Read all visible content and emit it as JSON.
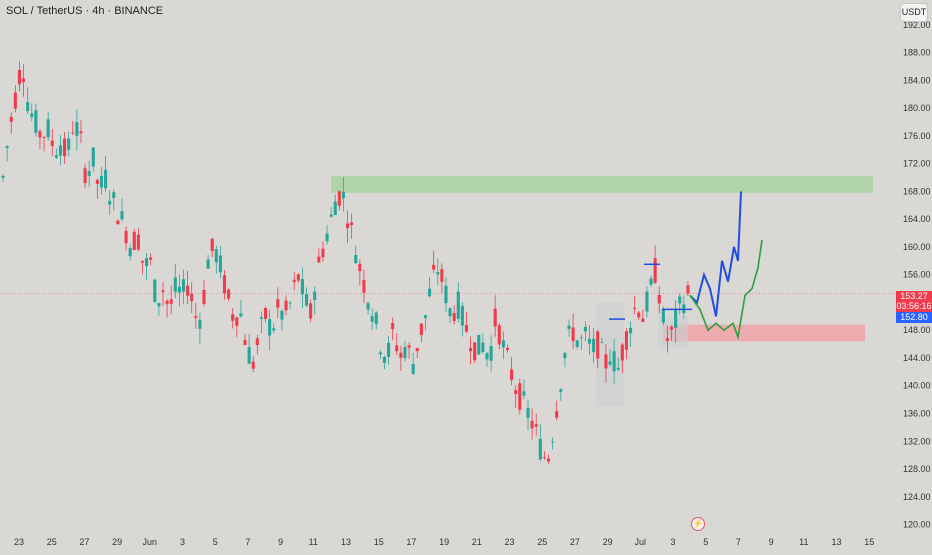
{
  "header": {
    "title": "SOL / TetherUS · 4h · BINANCE",
    "currency_button": "USDT"
  },
  "price_tags": {
    "last_price": "153.27",
    "countdown": "03:56:16",
    "other_price": "152.80"
  },
  "colors": {
    "background": "#d9d8d4",
    "up_candle": "#26a69a",
    "down_candle": "#ef3b4c",
    "resistance_zone": "#a8d3a0",
    "support_zone": "#f0a3a8",
    "projection_blue": "#1f4fe0",
    "projection_green": "#2e9e3e",
    "price_line": "#e86a76"
  },
  "chart_data": {
    "type": "candlestick",
    "title": "SOL / TetherUS · 4h · BINANCE",
    "x_ticks": [
      "23",
      "25",
      "27",
      "29",
      "Jun",
      "3",
      "5",
      "7",
      "9",
      "11",
      "13",
      "15",
      "17",
      "19",
      "21",
      "23",
      "25",
      "27",
      "29",
      "Jul",
      "3",
      "5",
      "7",
      "9",
      "11",
      "13",
      "15"
    ],
    "y_ticks": [
      120,
      124,
      128,
      132,
      136,
      140,
      144,
      148,
      152,
      156,
      160,
      164,
      168,
      172,
      176,
      180,
      184,
      188,
      192
    ],
    "ylim": [
      119.5,
      194
    ],
    "last_price": 153.27,
    "zones": [
      {
        "name": "resistance",
        "from": 167.8,
        "to": 170.2
      },
      {
        "name": "support",
        "from": 146.4,
        "to": 148.8
      }
    ],
    "close_path": [
      170,
      177,
      182,
      187,
      180,
      178,
      176,
      177,
      174,
      175,
      173,
      178,
      176,
      170,
      173,
      168,
      170,
      167,
      165,
      163,
      160,
      162,
      157,
      158,
      152,
      154,
      151,
      154,
      153,
      155,
      150,
      150,
      158,
      160,
      157,
      153,
      150,
      151,
      146,
      143,
      147,
      150,
      148,
      151,
      150,
      152,
      156,
      153,
      150,
      156,
      160,
      163,
      167,
      168,
      164,
      160,
      156,
      153,
      150,
      146,
      144,
      148,
      144,
      146,
      143,
      147,
      150,
      155,
      157,
      154,
      150,
      152,
      149,
      147,
      145,
      146,
      144,
      150,
      146,
      143,
      140,
      138,
      136,
      134,
      131,
      129,
      134,
      140,
      146,
      148,
      146,
      147,
      145,
      146,
      143,
      145,
      142,
      146,
      149,
      152,
      150,
      153,
      157,
      150,
      146,
      149,
      152,
      153
    ]
  }
}
